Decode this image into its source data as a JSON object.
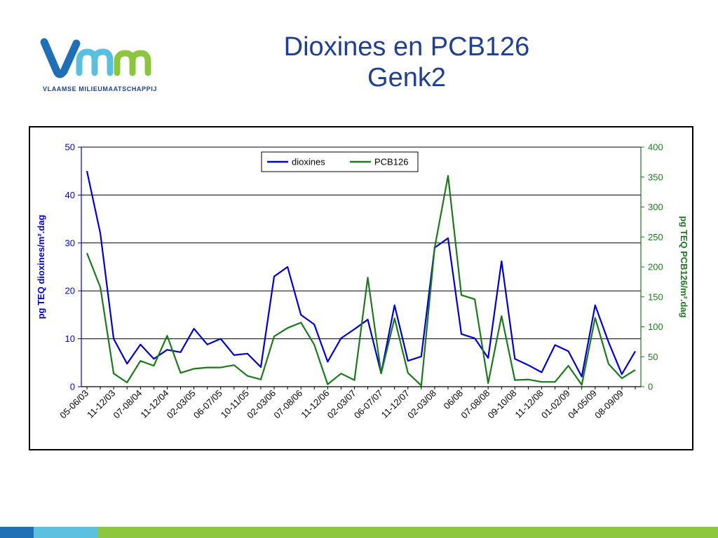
{
  "slide": {
    "title_line1": "Dioxines en PCB126",
    "title_line2": "Genk2"
  },
  "logo": {
    "wordmark": "VMM",
    "tagline": "VLAAMSE MILIEUMAATSCHAPPIJ",
    "colors": [
      "#1f6fb5",
      "#5bc0e0",
      "#8cc63f"
    ]
  },
  "footer": {
    "colors": [
      "#1f6fb5",
      "#5bc0e0",
      "#8cc63f"
    ]
  },
  "chart_data": {
    "type": "line",
    "title": "",
    "ylabel": "pg TEQ dioxines/m².dag",
    "y2label": "pg TEQ PCB126/m².dag",
    "ylim": [
      0,
      50
    ],
    "y2lim": [
      0,
      400
    ],
    "yticks": [
      0,
      10,
      20,
      30,
      40,
      50
    ],
    "y2ticks": [
      0,
      50,
      100,
      150,
      200,
      250,
      300,
      350,
      400
    ],
    "grid": "horizontal major lines",
    "legend_position": "top-center",
    "tick_labels": [
      "05-06/03",
      "11-12/03",
      "07-08/04",
      "11-12/04",
      "02-03/05",
      "06-07/05",
      "10-11/05",
      "02-03/06",
      "07-08/06",
      "11-12/06",
      "02-03/07",
      "06-07/07",
      "11-12/07",
      "02-03/08",
      "06/08",
      "07-08/08",
      "09-10/08",
      "11-12/08",
      "01-02/09",
      "04-05/09",
      "08-09/09"
    ],
    "tick_label_positions": [
      0,
      2,
      4,
      6,
      8,
      10,
      12,
      14,
      16,
      18,
      20,
      22,
      24,
      26,
      28,
      30,
      32,
      34,
      36,
      38,
      40
    ],
    "point_count": 42,
    "series": [
      {
        "name": "dioxines",
        "axis": "left",
        "color": "#0000cc",
        "values": [
          45,
          32,
          10,
          4.8,
          8.8,
          5.8,
          7.7,
          7.2,
          12.1,
          8.8,
          10.0,
          6.6,
          6.9,
          4.1,
          23,
          25,
          15,
          13,
          5.2,
          10.1,
          12,
          14,
          2.8,
          17,
          5.4,
          6.3,
          29,
          31,
          11,
          10.1,
          6.0,
          26.2,
          5.8,
          4.5,
          3.0,
          8.7,
          7.4,
          2.1,
          17,
          9.3,
          2.6,
          7.4
        ]
      },
      {
        "name": "PCB126",
        "axis": "right",
        "color": "#1a7a1a",
        "values": [
          223,
          166,
          22,
          7,
          43,
          35,
          85,
          23,
          30,
          32,
          32,
          36,
          18,
          12,
          84,
          98,
          107,
          70,
          4,
          22,
          11,
          182,
          22,
          114,
          23,
          2,
          232,
          352,
          153,
          146,
          6,
          118,
          11,
          12,
          8,
          8,
          35,
          3,
          115,
          38,
          14,
          28
        ]
      }
    ]
  }
}
